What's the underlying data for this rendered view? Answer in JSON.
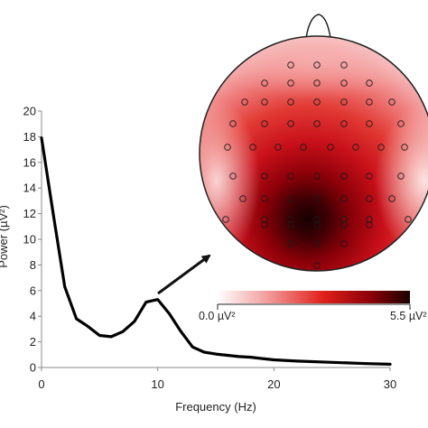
{
  "chart_data": [
    {
      "type": "line",
      "title": "",
      "xlabel": "Frequency (Hz)",
      "ylabel": "Power (µV²)",
      "xlim": [
        0,
        30
      ],
      "ylim": [
        0,
        20
      ],
      "xticks": [
        "0",
        "10",
        "20",
        "30"
      ],
      "yticks": [
        "0",
        "2",
        "4",
        "6",
        "8",
        "10",
        "12",
        "14",
        "16",
        "18",
        "20"
      ],
      "grid": false,
      "series": [
        {
          "color": "#000000",
          "x": [
            0,
            1,
            2,
            3,
            4,
            5,
            6,
            7,
            8,
            9,
            10,
            11,
            12,
            13,
            14,
            15,
            16,
            17,
            18,
            19,
            20,
            22,
            25,
            28,
            30
          ],
          "y": [
            17.9,
            12.0,
            6.3,
            3.8,
            3.2,
            2.5,
            2.4,
            2.8,
            3.6,
            5.1,
            5.3,
            4.2,
            2.8,
            1.6,
            1.2,
            1.05,
            0.95,
            0.85,
            0.8,
            0.7,
            0.6,
            0.5,
            0.4,
            0.3,
            0.25
          ]
        }
      ]
    },
    {
      "type": "heatmap",
      "title": "",
      "colorbar": {
        "min_label": "0.0 µV²",
        "max_label": "5.5 µV²",
        "range": [
          0.0,
          5.5
        ],
        "colors": [
          "#ffffff",
          "#f2a0a0",
          "#e0201a",
          "#8a0008",
          "#1a0000"
        ]
      },
      "electrodes_visible": true,
      "peak_location": "posterior"
    }
  ]
}
